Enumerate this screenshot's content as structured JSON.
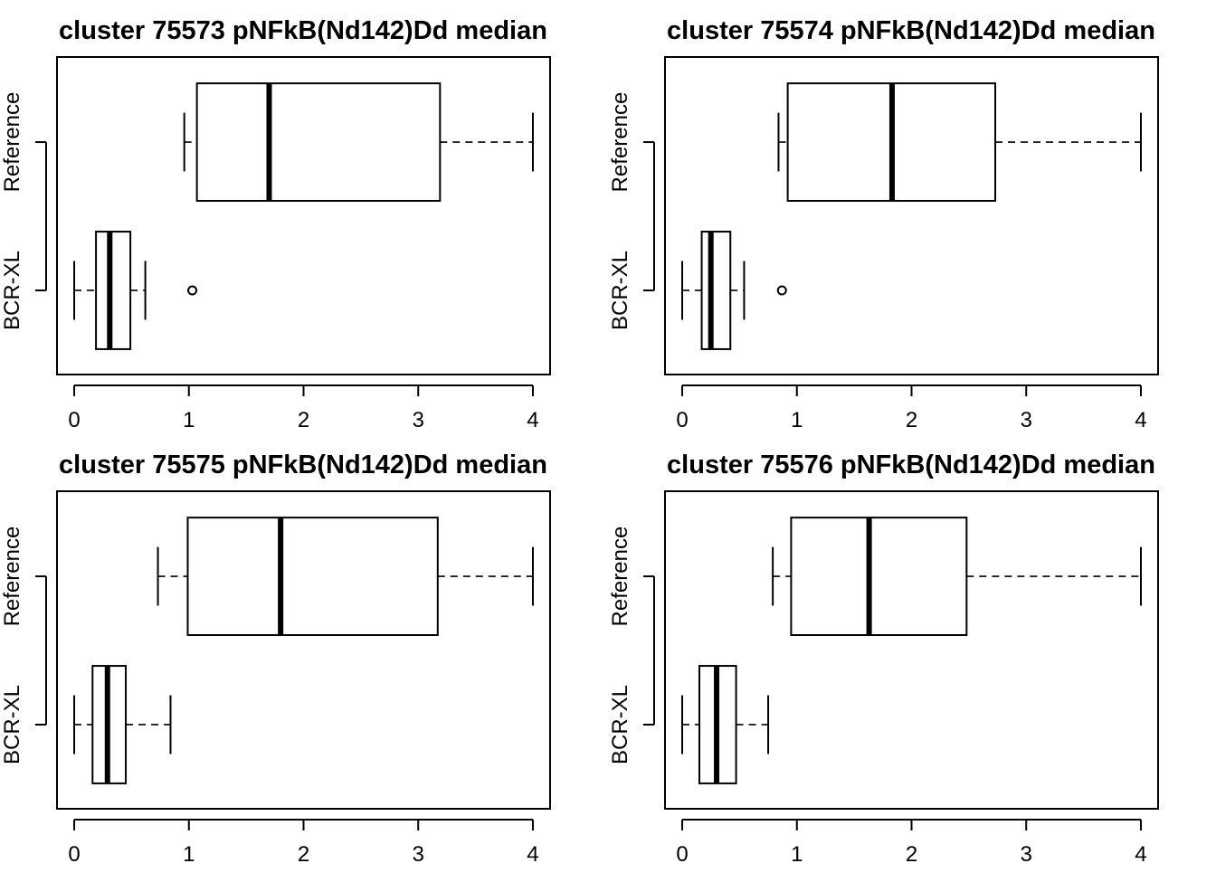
{
  "chart_data": [
    {
      "type": "boxplot",
      "orientation": "horizontal",
      "title": "cluster 75573 pNFkB(Nd142)Dd median",
      "categories": [
        "Reference",
        "BCR-XL"
      ],
      "xlim": [
        -0.15,
        4.15
      ],
      "xticks": [
        "0",
        "1",
        "2",
        "3",
        "4"
      ],
      "boxes": [
        {
          "name": "Reference",
          "min": 0.96,
          "q1": 1.07,
          "median": 1.7,
          "q3": 3.19,
          "max": 4.0,
          "outliers": []
        },
        {
          "name": "BCR-XL",
          "min": 0.0,
          "q1": 0.19,
          "median": 0.31,
          "q3": 0.49,
          "max": 0.62,
          "outliers": [
            1.03
          ]
        }
      ]
    },
    {
      "type": "boxplot",
      "orientation": "horizontal",
      "title": "cluster 75574 pNFkB(Nd142)Dd median",
      "categories": [
        "Reference",
        "BCR-XL"
      ],
      "xlim": [
        -0.15,
        4.15
      ],
      "xticks": [
        "0",
        "1",
        "2",
        "3",
        "4"
      ],
      "boxes": [
        {
          "name": "Reference",
          "min": 0.84,
          "q1": 0.92,
          "median": 1.83,
          "q3": 2.73,
          "max": 4.0,
          "outliers": []
        },
        {
          "name": "BCR-XL",
          "min": 0.0,
          "q1": 0.17,
          "median": 0.25,
          "q3": 0.42,
          "max": 0.54,
          "outliers": [
            0.87
          ]
        }
      ]
    },
    {
      "type": "boxplot",
      "orientation": "horizontal",
      "title": "cluster 75575 pNFkB(Nd142)Dd median",
      "categories": [
        "Reference",
        "BCR-XL"
      ],
      "xlim": [
        -0.15,
        4.15
      ],
      "xticks": [
        "0",
        "1",
        "2",
        "3",
        "4"
      ],
      "boxes": [
        {
          "name": "Reference",
          "min": 0.73,
          "q1": 0.99,
          "median": 1.8,
          "q3": 3.17,
          "max": 4.0,
          "outliers": []
        },
        {
          "name": "BCR-XL",
          "min": 0.0,
          "q1": 0.16,
          "median": 0.29,
          "q3": 0.45,
          "max": 0.84,
          "outliers": []
        }
      ]
    },
    {
      "type": "boxplot",
      "orientation": "horizontal",
      "title": "cluster 75576 pNFkB(Nd142)Dd median",
      "categories": [
        "Reference",
        "BCR-XL"
      ],
      "xlim": [
        -0.15,
        4.15
      ],
      "xticks": [
        "0",
        "1",
        "2",
        "3",
        "4"
      ],
      "boxes": [
        {
          "name": "Reference",
          "min": 0.79,
          "q1": 0.95,
          "median": 1.63,
          "q3": 2.48,
          "max": 4.0,
          "outliers": []
        },
        {
          "name": "BCR-XL",
          "min": 0.0,
          "q1": 0.15,
          "median": 0.3,
          "q3": 0.47,
          "max": 0.75,
          "outliers": []
        }
      ]
    }
  ]
}
